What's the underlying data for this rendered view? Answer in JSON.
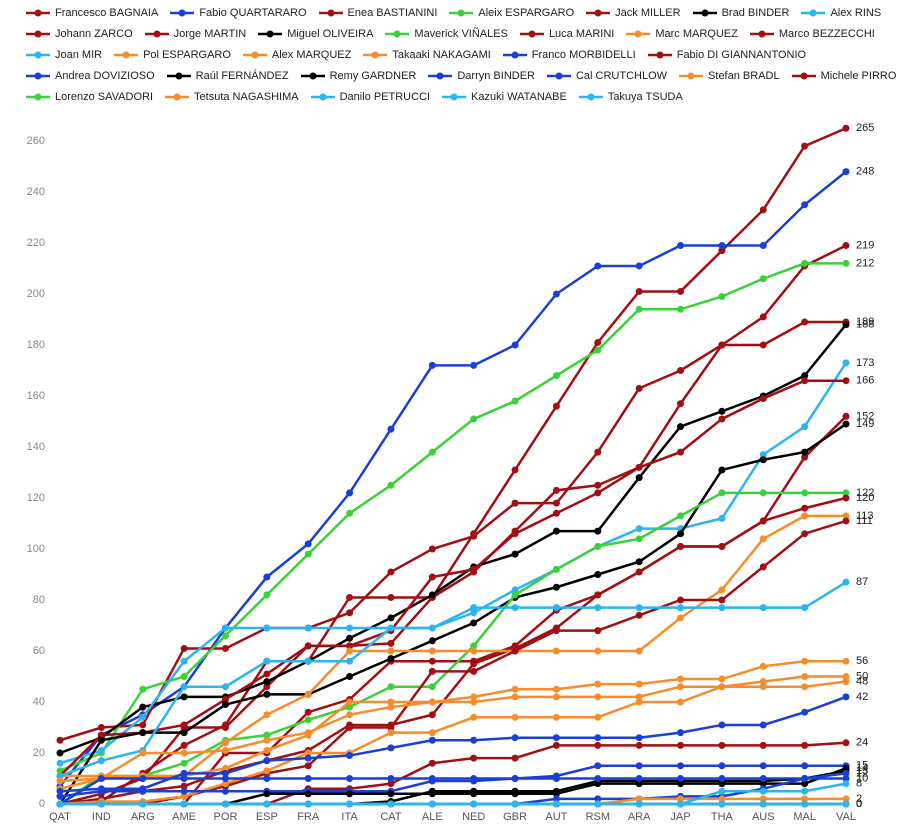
{
  "chart_data": {
    "type": "line",
    "categories": [
      "QAT",
      "IND",
      "ARG",
      "AME",
      "POR",
      "ESP",
      "FRA",
      "ITA",
      "CAT",
      "ALE",
      "NED",
      "GBR",
      "AUT",
      "RSM",
      "ARA",
      "JAP",
      "THA",
      "AUS",
      "MAL",
      "VAL"
    ],
    "ylim": [
      0,
      265
    ],
    "yticks": [
      0,
      20,
      40,
      60,
      80,
      100,
      120,
      140,
      160,
      180,
      200,
      220,
      240,
      260
    ],
    "series": [
      {
        "name": "Francesco BAGNAIA",
        "color": "#a00f14",
        "values": [
          0,
          1,
          12,
          23,
          31,
          56,
          56,
          81,
          81,
          81,
          106,
          131,
          156,
          181,
          201,
          201,
          217,
          233,
          258,
          265
        ]
      },
      {
        "name": "Fabio QUARTARARO",
        "color": "#1a3fd6",
        "values": [
          7,
          27,
          35,
          46,
          69,
          89,
          102,
          122,
          147,
          172,
          172,
          180,
          200,
          211,
          211,
          219,
          219,
          219,
          235,
          248
        ]
      },
      {
        "name": "Enea BASTIANINI",
        "color": "#a00f14",
        "values": [
          25,
          30,
          31,
          61,
          61,
          69,
          69,
          75,
          91,
          100,
          105,
          118,
          118,
          138,
          163,
          170,
          180,
          191,
          211,
          219
        ]
      },
      {
        "name": "Aleix ESPARGARO",
        "color": "#3ad13a",
        "values": [
          13,
          20,
          45,
          50,
          66,
          82,
          98,
          114,
          125,
          138,
          151,
          158,
          168,
          178,
          194,
          194,
          199,
          206,
          212,
          212
        ]
      },
      {
        "name": "Jack MILLER",
        "color": "#a00f14",
        "values": [
          0,
          4,
          10,
          30,
          30,
          46,
          62,
          62,
          63,
          81,
          91,
          107,
          123,
          125,
          132,
          157,
          180,
          180,
          189,
          189
        ]
      },
      {
        "name": "Brad BINDER",
        "color": "#000000",
        "values": [
          20,
          26,
          38,
          42,
          42,
          48,
          56,
          65,
          73,
          82,
          93,
          98,
          107,
          107,
          128,
          148,
          154,
          160,
          168,
          188
        ]
      },
      {
        "name": "Alex RINS",
        "color": "#2bb5f0",
        "values": [
          16,
          21,
          34,
          56,
          69,
          69,
          69,
          69,
          69,
          69,
          75,
          84,
          92,
          101,
          108,
          108,
          112,
          137,
          148,
          173
        ]
      },
      {
        "name": "Johann ZARCO",
        "color": "#a00f14",
        "values": [
          11,
          27,
          28,
          31,
          41,
          51,
          62,
          62,
          68,
          89,
          92,
          106,
          114,
          122,
          132,
          138,
          151,
          159,
          166,
          166
        ]
      },
      {
        "name": "Jorge MARTIN",
        "color": "#a00f14",
        "values": [
          0,
          0,
          0,
          0,
          20,
          20,
          36,
          41,
          56,
          56,
          56,
          62,
          76,
          82,
          91,
          101,
          101,
          111,
          136,
          152
        ]
      },
      {
        "name": "Miguel OLIVEIRA",
        "color": "#000000",
        "values": [
          0,
          25,
          28,
          28,
          39,
          43,
          43,
          50,
          57,
          64,
          71,
          81,
          85,
          90,
          95,
          106,
          131,
          135,
          138,
          149
        ]
      },
      {
        "name": "Maverick VIÑALES",
        "color": "#3ad13a",
        "values": [
          0,
          11,
          11,
          16,
          25,
          27,
          33,
          38,
          46,
          46,
          62,
          82,
          92,
          101,
          104,
          113,
          122,
          122,
          122,
          122
        ]
      },
      {
        "name": "Luca MARINI",
        "color": "#a00f14",
        "values": [
          0,
          2,
          5,
          7,
          13,
          17,
          21,
          31,
          31,
          35,
          55,
          61,
          69,
          82,
          91,
          101,
          101,
          111,
          116,
          120
        ]
      },
      {
        "name": "Marc MARQUEZ",
        "color": "#f68c2a",
        "values": [
          11,
          11,
          11,
          11,
          24,
          35,
          43,
          60,
          60,
          60,
          60,
          60,
          60,
          60,
          60,
          73,
          84,
          104,
          113,
          113
        ]
      },
      {
        "name": "Marco BEZZECCHI",
        "color": "#a00f14",
        "values": [
          0,
          0,
          0,
          3,
          7,
          12,
          15,
          30,
          30,
          52,
          52,
          60,
          68,
          68,
          74,
          80,
          80,
          93,
          106,
          111
        ]
      },
      {
        "name": "Joan MIR",
        "color": "#2bb5f0",
        "values": [
          11,
          17,
          21,
          46,
          46,
          56,
          56,
          56,
          69,
          69,
          77,
          77,
          77,
          77,
          77,
          77,
          77,
          77,
          77,
          87
        ]
      },
      {
        "name": "Pol ESPARGARO",
        "color": "#f68c2a",
        "values": [
          9,
          10,
          20,
          20,
          21,
          25,
          28,
          35,
          38,
          40,
          42,
          45,
          45,
          47,
          47,
          49,
          49,
          54,
          56,
          56
        ]
      },
      {
        "name": "Alex MARQUEZ",
        "color": "#f68c2a",
        "values": [
          0,
          1,
          1,
          3,
          8,
          13,
          20,
          20,
          28,
          28,
          34,
          34,
          34,
          34,
          40,
          40,
          46,
          48,
          50,
          50
        ]
      },
      {
        "name": "Takaaki NAKAGAMI",
        "color": "#f68c2a",
        "values": [
          6,
          10,
          11,
          11,
          14,
          21,
          27,
          40,
          40,
          40,
          40,
          42,
          42,
          42,
          42,
          46,
          46,
          46,
          46,
          48
        ]
      },
      {
        "name": "Franco MORBIDELLI",
        "color": "#1a3fd6",
        "values": [
          5,
          6,
          6,
          12,
          12,
          17,
          18,
          19,
          22,
          25,
          25,
          26,
          26,
          26,
          26,
          28,
          31,
          31,
          36,
          42
        ]
      },
      {
        "name": "Fabio DI GIANNANTONIO",
        "color": "#a00f14",
        "values": [
          0,
          0,
          0,
          0,
          0,
          0,
          6,
          6,
          8,
          16,
          18,
          18,
          23,
          23,
          23,
          23,
          23,
          23,
          23,
          24
        ]
      },
      {
        "name": "Andrea DOVIZIOSO",
        "color": "#1a3fd6",
        "values": [
          3,
          5,
          5,
          5,
          5,
          5,
          5,
          5,
          5,
          9,
          9,
          10,
          11,
          15,
          15,
          15,
          15,
          15,
          15,
          15
        ]
      },
      {
        "name": "Raúl FERNÁNDEZ",
        "color": "#000000",
        "values": [
          0,
          0,
          0,
          0,
          0,
          4,
          4,
          4,
          4,
          4,
          4,
          4,
          4,
          8,
          8,
          8,
          8,
          8,
          8,
          14
        ]
      },
      {
        "name": "Remy GARDNER",
        "color": "#000000",
        "values": [
          0,
          0,
          0,
          0,
          0,
          0,
          0,
          0,
          1,
          5,
          5,
          5,
          5,
          9,
          9,
          9,
          9,
          9,
          10,
          13
        ]
      },
      {
        "name": "Darryn BINDER",
        "color": "#1a3fd6",
        "values": [
          0,
          10,
          10,
          10,
          10,
          10,
          10,
          10,
          10,
          10,
          10,
          10,
          10,
          10,
          10,
          10,
          10,
          10,
          10,
          12
        ]
      },
      {
        "name": "Cal CRUTCHLOW",
        "color": "#1a3fd6",
        "values": [
          0,
          0,
          0,
          0,
          0,
          0,
          0,
          0,
          0,
          0,
          0,
          0,
          2,
          2,
          2,
          3,
          3,
          6,
          10,
          10
        ]
      },
      {
        "name": "Stefan BRADL",
        "color": "#f68c2a",
        "values": [
          0,
          0,
          0,
          0,
          0,
          0,
          0,
          0,
          0,
          0,
          0,
          0,
          0,
          0,
          2,
          2,
          2,
          2,
          2,
          2
        ]
      },
      {
        "name": "Michele PIRRO",
        "color": "#a00f14",
        "values": [
          0,
          0,
          0,
          0,
          0,
          0,
          0,
          0,
          0,
          0,
          0,
          0,
          0,
          0,
          0,
          0,
          0,
          0,
          0,
          0
        ]
      },
      {
        "name": "Lorenzo SAVADORI",
        "color": "#3ad13a",
        "values": [
          0,
          0,
          0,
          0,
          0,
          0,
          0,
          0,
          0,
          0,
          0,
          0,
          0,
          0,
          0,
          0,
          0,
          0,
          0,
          0
        ]
      },
      {
        "name": "Tetsuta NAGASHIMA",
        "color": "#f68c2a",
        "values": [
          0,
          0,
          0,
          0,
          0,
          0,
          0,
          0,
          0,
          0,
          0,
          0,
          0,
          0,
          0,
          0,
          0,
          0,
          0,
          0
        ]
      },
      {
        "name": "Danilo PETRUCCI",
        "color": "#2bb5f0",
        "values": [
          0,
          0,
          0,
          0,
          0,
          0,
          0,
          0,
          0,
          0,
          0,
          0,
          0,
          0,
          0,
          0,
          5,
          5,
          5,
          8
        ]
      },
      {
        "name": "Kazuki WATANABE",
        "color": "#2bb5f0",
        "values": [
          0,
          0,
          0,
          0,
          0,
          0,
          0,
          0,
          0,
          0,
          0,
          0,
          0,
          0,
          0,
          0,
          0,
          0,
          0,
          0
        ]
      },
      {
        "name": "Takuya TSUDA",
        "color": "#2bb5f0",
        "values": [
          0,
          0,
          0,
          0,
          0,
          0,
          0,
          0,
          0,
          0,
          0,
          0,
          0,
          0,
          0,
          0,
          0,
          0,
          0,
          0
        ]
      }
    ]
  }
}
